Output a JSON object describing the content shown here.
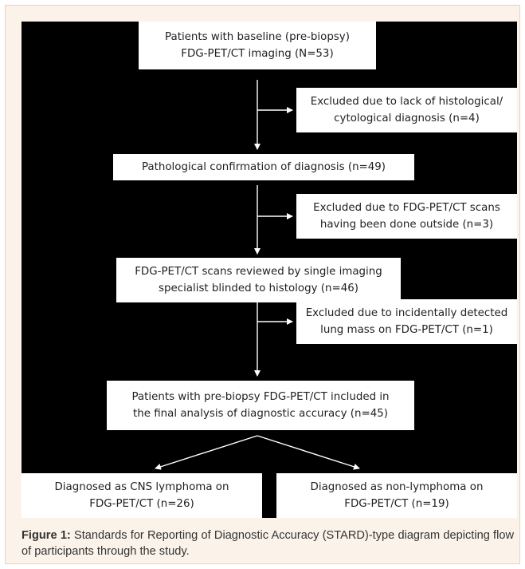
{
  "diagram": {
    "boxes": {
      "baseline": "Patients with baseline (pre-biopsy)\nFDG-PET/CT imaging (N=53)",
      "excluded_histology": "Excluded due to lack of histological/\ncytological diagnosis (n=4)",
      "confirmation": "Pathological confirmation of diagnosis (n=49)",
      "excluded_outside": "Excluded due to FDG-PET/CT scans\nhaving been done outside (n=3)",
      "reviewed": "FDG-PET/CT scans reviewed by single imaging\nspecialist blinded to histology (n=46)",
      "excluded_lung": "Excluded due to incidentally detected\nlung mass on FDG-PET/CT (n=1)",
      "included": "Patients with pre-biopsy FDG-PET/CT included in\nthe final analysis of diagnostic accuracy (n=45)",
      "cns_lymphoma": "Diagnosed as CNS lymphoma on\nFDG-PET/CT (n=26)",
      "non_lymphoma": "Diagnosed as non-lymphoma on\nFDG-PET/CT (n=19)"
    }
  },
  "caption": {
    "label": "Figure 1:",
    "text": " Standards for Reporting of Diagnostic Accuracy (STARD)-type diagram depicting flow of participants through the study."
  }
}
